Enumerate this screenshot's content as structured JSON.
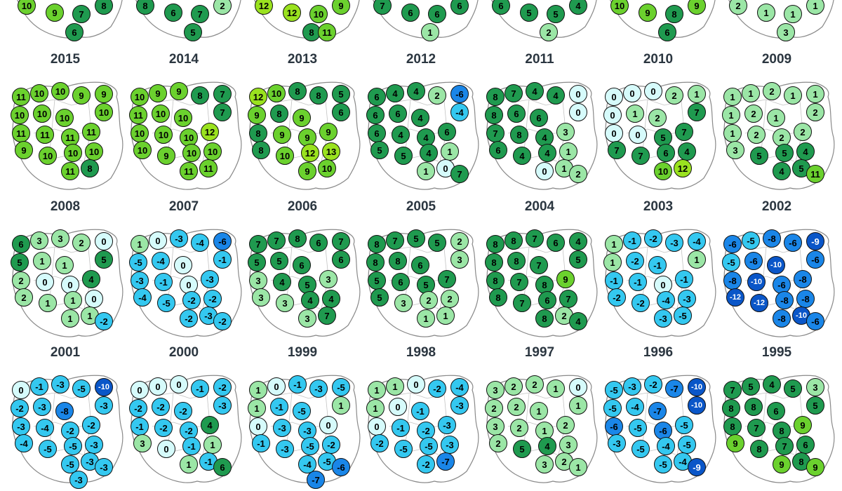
{
  "figure": {
    "note": "Small-multiple maps of Poland; each circle shows a regional value for that year.",
    "colors": {
      "neg_strong": "#0a56c8",
      "neg_mid": "#1a86e8",
      "neg_light": "#34c8f0",
      "zero": "#d6fbfb",
      "pos_light": "#9be6a6",
      "pos_mid": "#2fae5f",
      "pos_strong": "#1f9a4f",
      "pos_high": "#6bd12e",
      "pos_max": "#9ae21f"
    }
  },
  "top_row_partial": [
    {
      "values": [
        "10",
        "9",
        "7",
        "8",
        "6"
      ]
    },
    {
      "values": [
        "8",
        "6",
        "7",
        "2",
        "5"
      ]
    },
    {
      "values": [
        "12",
        "12",
        "10",
        "9",
        "8",
        "11"
      ]
    },
    {
      "values": [
        "7",
        "6",
        "6",
        "6",
        "1"
      ]
    },
    {
      "values": [
        "6",
        "5",
        "5",
        "4",
        "2"
      ]
    },
    {
      "values": [
        "10",
        "9",
        "8",
        "9",
        "6"
      ]
    },
    {
      "values": [
        "2",
        "1",
        "1",
        "1",
        "3"
      ]
    }
  ],
  "panels": [
    {
      "year": "2015",
      "values": [
        "11",
        "10",
        "10",
        "9",
        "9",
        "10",
        "10",
        "10",
        "10",
        "11",
        "11",
        "11",
        "11",
        "9",
        "10",
        "10",
        "10",
        "11",
        "8"
      ]
    },
    {
      "year": "2014",
      "values": [
        "10",
        "9",
        "9",
        "8",
        "7",
        "11",
        "10",
        "10",
        "7",
        "10",
        "10",
        "10",
        "12",
        "10",
        "9",
        "10",
        "10",
        "11",
        "11"
      ]
    },
    {
      "year": "2013",
      "values": [
        "12",
        "10",
        "8",
        "8",
        "5",
        "9",
        "8",
        "9",
        "6",
        "8",
        "9",
        "9",
        "9",
        "8",
        "10",
        "12",
        "13",
        "9",
        "10"
      ]
    },
    {
      "year": "2012",
      "values": [
        "6",
        "4",
        "4",
        "2",
        "-6",
        "6",
        "6",
        "4",
        "-4",
        "6",
        "4",
        "4",
        "6",
        "5",
        "5",
        "4",
        "1",
        "1",
        "0",
        "7"
      ]
    },
    {
      "year": "2011",
      "values": [
        "8",
        "7",
        "4",
        "4",
        "0",
        "8",
        "6",
        "6",
        "0",
        "7",
        "8",
        "4",
        "3",
        "6",
        "4",
        "4",
        "1",
        "0",
        "1",
        "2"
      ]
    },
    {
      "year": "2010",
      "values": [
        "0",
        "0",
        "0",
        "2",
        "1",
        "0",
        "1",
        "2",
        "7",
        "0",
        "0",
        "5",
        "7",
        "7",
        "7",
        "6",
        "4",
        "10",
        "12"
      ]
    },
    {
      "year": "2009",
      "values": [
        "1",
        "1",
        "2",
        "1",
        "1",
        "1",
        "2",
        "1",
        "2",
        "1",
        "2",
        "2",
        "2",
        "3",
        "5",
        "5",
        "4",
        "4",
        "5",
        "11"
      ]
    },
    {
      "year": "2008",
      "values": [
        "6",
        "3",
        "3",
        "2",
        "0",
        "5",
        "1",
        "1",
        "5",
        "2",
        "0",
        "0",
        "4",
        "2",
        "1",
        "1",
        "0",
        "1",
        "1",
        "-2"
      ]
    },
    {
      "year": "2007",
      "values": [
        "1",
        "0",
        "-3",
        "-4",
        "-6",
        "-5",
        "-4",
        "0",
        "-1",
        "-3",
        "-1",
        "0",
        "-3",
        "-4",
        "-5",
        "-2",
        "-2",
        "-2",
        "-3",
        "-2"
      ]
    },
    {
      "year": "2006",
      "values": [
        "7",
        "7",
        "8",
        "6",
        "7",
        "5",
        "5",
        "6",
        "6",
        "3",
        "4",
        "5",
        "3",
        "3",
        "3",
        "4",
        "4",
        "3",
        "7"
      ]
    },
    {
      "year": "2005",
      "values": [
        "8",
        "7",
        "5",
        "5",
        "2",
        "8",
        "8",
        "6",
        "3",
        "5",
        "6",
        "5",
        "7",
        "5",
        "3",
        "2",
        "2",
        "1",
        "1"
      ]
    },
    {
      "year": "2004",
      "values": [
        "8",
        "8",
        "7",
        "6",
        "4",
        "8",
        "8",
        "7",
        "5",
        "8",
        "7",
        "8",
        "9",
        "8",
        "7",
        "6",
        "7",
        "8",
        "2",
        "4"
      ]
    },
    {
      "year": "2003",
      "values": [
        "1",
        "-1",
        "-2",
        "-3",
        "-4",
        "1",
        "-2",
        "-1",
        "1",
        "-1",
        "-1",
        "0",
        "-1",
        "-2",
        "-2",
        "-4",
        "-3",
        "-3",
        "-5"
      ]
    },
    {
      "year": "2002",
      "values": [
        "-6",
        "-5",
        "-8",
        "-6",
        "-9",
        "-5",
        "-6",
        "-10",
        "-6",
        "-8",
        "-10",
        "-6",
        "-8",
        "-12",
        "-12",
        "-8",
        "-8",
        "-8",
        "-10",
        "-6"
      ]
    },
    {
      "year": "2001",
      "values": [
        "0",
        "-1",
        "-3",
        "-5",
        "-10",
        "-2",
        "-3",
        "-8",
        "-3",
        "-3",
        "-4",
        "-2",
        "-2",
        "-4",
        "-5",
        "-5",
        "-3",
        "-5",
        "-3",
        "-3",
        "-3"
      ]
    },
    {
      "year": "2000",
      "values": [
        "0",
        "0",
        "0",
        "-1",
        "-2",
        "-2",
        "-2",
        "-2",
        "-3",
        "-1",
        "-2",
        "-2",
        "4",
        "3",
        "0",
        "-1",
        "1",
        "1",
        "-1",
        "6"
      ]
    },
    {
      "year": "1999",
      "values": [
        "1",
        "0",
        "-1",
        "-3",
        "-5",
        "1",
        "-1",
        "-5",
        "1",
        "0",
        "-3",
        "-3",
        "0",
        "-1",
        "-3",
        "-5",
        "-2",
        "-4",
        "-5",
        "-6",
        "-7"
      ]
    },
    {
      "year": "1998",
      "values": [
        "1",
        "1",
        "0",
        "-2",
        "-4",
        "1",
        "0",
        "-1",
        "-3",
        "0",
        "-1",
        "-2",
        "-3",
        "-2",
        "-5",
        "-5",
        "-3",
        "-2",
        "-7"
      ]
    },
    {
      "year": "1997",
      "values": [
        "3",
        "2",
        "2",
        "1",
        "0",
        "2",
        "2",
        "1",
        "1",
        "3",
        "2",
        "1",
        "2",
        "2",
        "5",
        "4",
        "3",
        "3",
        "2",
        "1"
      ]
    },
    {
      "year": "1996",
      "values": [
        "-5",
        "-3",
        "-2",
        "-7",
        "-10",
        "-5",
        "-4",
        "-7",
        "-10",
        "-6",
        "-5",
        "-6",
        "-5",
        "-3",
        "-5",
        "-4",
        "-5",
        "-5",
        "-4",
        "-9"
      ]
    },
    {
      "year": "1995",
      "values": [
        "7",
        "5",
        "4",
        "5",
        "3",
        "8",
        "8",
        "6",
        "5",
        "8",
        "7",
        "8",
        "9",
        "9",
        "8",
        "7",
        "6",
        "9",
        "8",
        "9"
      ]
    }
  ]
}
